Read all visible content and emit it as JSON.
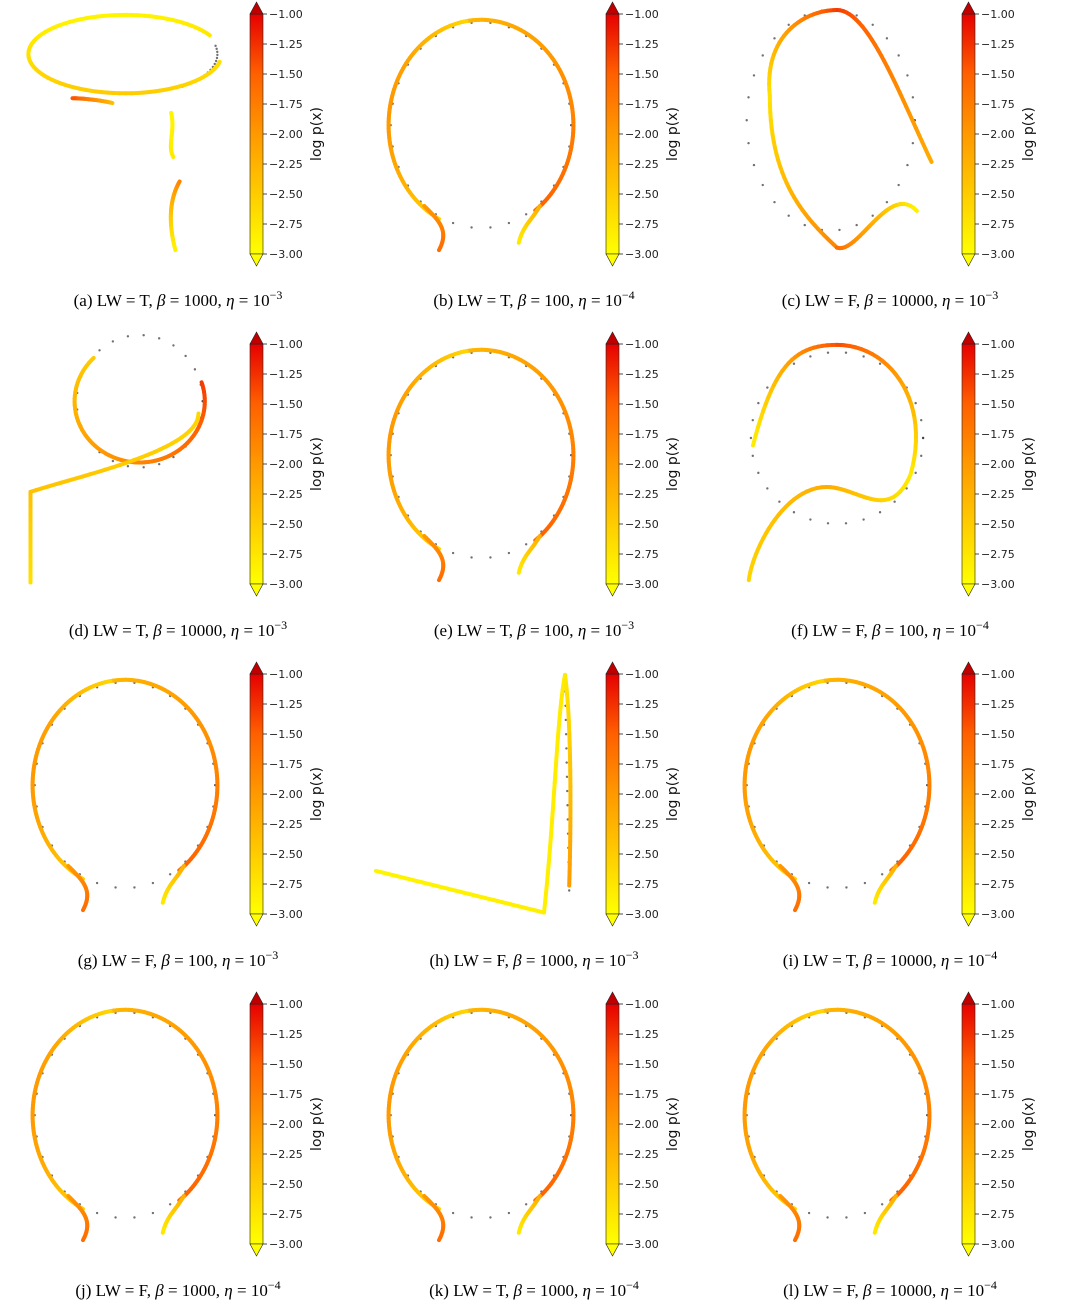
{
  "chart_data": [
    {
      "type": "line",
      "caption": {
        "prefix": "(a) LW = T, ",
        "beta": "1000",
        "eta_exp": "−3"
      },
      "colorbar": {
        "label": "log p(x)",
        "range": [
          -3.0,
          -1.0
        ],
        "ticks": [
          "−1.00",
          "−1.25",
          "−1.50",
          "−1.75",
          "−2.00",
          "−2.25",
          "−2.50",
          "−2.75",
          "−3.00"
        ]
      },
      "shape": "loop-with-tail-down",
      "dominant_color": "#f7e31b"
    },
    {
      "type": "line",
      "caption": {
        "prefix": "(b) LW = T, ",
        "beta": "100",
        "eta_exp": "−4"
      },
      "colorbar": {
        "label": "log p(x)",
        "range": [
          -3.0,
          -1.0
        ],
        "ticks": [
          "−1.00",
          "−1.25",
          "−1.50",
          "−1.75",
          "−2.00",
          "−2.25",
          "−2.50",
          "−2.75",
          "−3.00"
        ]
      },
      "shape": "circle",
      "dominant_color": "#f49a1e"
    },
    {
      "type": "line",
      "caption": {
        "prefix": "(c) LW = F, ",
        "beta": "10000",
        "eta_exp": "−3"
      },
      "colorbar": {
        "label": "log p(x)",
        "range": [
          -3.0,
          -1.0
        ],
        "ticks": [
          "−1.00",
          "−1.25",
          "−1.50",
          "−1.75",
          "−2.00",
          "−2.25",
          "−2.50",
          "−2.75",
          "−3.00"
        ]
      },
      "shape": "teardrop-open",
      "dominant_color": "#f08a22"
    },
    {
      "type": "line",
      "caption": {
        "prefix": "(d) LW = T, ",
        "beta": "10000",
        "eta_exp": "−3"
      },
      "colorbar": {
        "label": "log p(x)",
        "range": [
          -3.0,
          -1.0
        ],
        "ticks": [
          "−1.00",
          "−1.25",
          "−1.50",
          "−1.75",
          "−2.00",
          "−2.25",
          "−2.50",
          "−2.75",
          "−3.00"
        ]
      },
      "shape": "small-loop-with-tail-left",
      "dominant_color": "#f6b21c"
    },
    {
      "type": "line",
      "caption": {
        "prefix": "(e) LW = T, ",
        "beta": "100",
        "eta_exp": "−3"
      },
      "colorbar": {
        "label": "log p(x)",
        "range": [
          -3.0,
          -1.0
        ],
        "ticks": [
          "−1.00",
          "−1.25",
          "−1.50",
          "−1.75",
          "−2.00",
          "−2.25",
          "−2.50",
          "−2.75",
          "−3.00"
        ]
      },
      "shape": "circle",
      "dominant_color": "#ef7a22"
    },
    {
      "type": "line",
      "caption": {
        "prefix": "(f) LW = F, ",
        "beta": "100",
        "eta_exp": "−4"
      },
      "colorbar": {
        "label": "log p(x)",
        "range": [
          -3.0,
          -1.0
        ],
        "ticks": [
          "−1.00",
          "−1.25",
          "−1.50",
          "−1.75",
          "−2.00",
          "−2.25",
          "−2.50",
          "−2.75",
          "−3.00"
        ]
      },
      "shape": "circle-with-crossing-tail",
      "dominant_color": "#f39a20"
    },
    {
      "type": "line",
      "caption": {
        "prefix": "(g) LW = F, ",
        "beta": "100",
        "eta_exp": "−3"
      },
      "colorbar": {
        "label": "log p(x)",
        "range": [
          -3.0,
          -1.0
        ],
        "ticks": [
          "−1.00",
          "−1.25",
          "−1.50",
          "−1.75",
          "−2.00",
          "−2.25",
          "−2.50",
          "−2.75",
          "−3.00"
        ]
      },
      "shape": "circle",
      "dominant_color": "#ef7e22"
    },
    {
      "type": "line",
      "caption": {
        "prefix": "(h) LW = F, ",
        "beta": "1000",
        "eta_exp": "−3"
      },
      "colorbar": {
        "label": "log p(x)",
        "range": [
          -3.0,
          -1.0
        ],
        "ticks": [
          "−1.00",
          "−1.25",
          "−1.50",
          "−1.75",
          "−2.00",
          "−2.25",
          "−2.50",
          "−2.75",
          "−3.00"
        ]
      },
      "shape": "collapsed-loop",
      "dominant_color": "#f8ee20"
    },
    {
      "type": "line",
      "caption": {
        "prefix": "(i) LW = T, ",
        "beta": "10000",
        "eta_exp": "−4"
      },
      "colorbar": {
        "label": "log p(x)",
        "range": [
          -3.0,
          -1.0
        ],
        "ticks": [
          "−1.00",
          "−1.25",
          "−1.50",
          "−1.75",
          "−2.00",
          "−2.25",
          "−2.50",
          "−2.75",
          "−3.00"
        ]
      },
      "shape": "circle",
      "dominant_color": "#f3a41e"
    },
    {
      "type": "line",
      "caption": {
        "prefix": "(j) LW = F, ",
        "beta": "1000",
        "eta_exp": "−4"
      },
      "colorbar": {
        "label": "log p(x)",
        "range": [
          -3.0,
          -1.0
        ],
        "ticks": [
          "−1.00",
          "−1.25",
          "−1.50",
          "−1.75",
          "−2.00",
          "−2.25",
          "−2.50",
          "−2.75",
          "−3.00"
        ]
      },
      "shape": "circle",
      "dominant_color": "#f6dc1c"
    },
    {
      "type": "line",
      "caption": {
        "prefix": "(k) LW = T, ",
        "beta": "1000",
        "eta_exp": "−4"
      },
      "colorbar": {
        "label": "log p(x)",
        "range": [
          -3.0,
          -1.0
        ],
        "ticks": [
          "−1.00",
          "−1.25",
          "−1.50",
          "−1.75",
          "−2.00",
          "−2.25",
          "−2.50",
          "−2.75",
          "−3.00"
        ]
      },
      "shape": "circle",
      "dominant_color": "#f4b01e"
    },
    {
      "type": "line",
      "caption": {
        "prefix": "(l) LW = F, ",
        "beta": "10000",
        "eta_exp": "−4"
      },
      "colorbar": {
        "label": "log p(x)",
        "range": [
          -3.0,
          -1.0
        ],
        "ticks": [
          "−1.00",
          "−1.25",
          "−1.50",
          "−1.75",
          "−2.00",
          "−2.25",
          "−2.50",
          "−2.75",
          "−3.00"
        ]
      },
      "shape": "circle",
      "dominant_color": "#f39820"
    }
  ],
  "colors": {
    "colormap": [
      "#ffff00",
      "#ffcc00",
      "#ff9a00",
      "#ff6600",
      "#f03000",
      "#cc0000"
    ],
    "target_points": "#333333"
  }
}
